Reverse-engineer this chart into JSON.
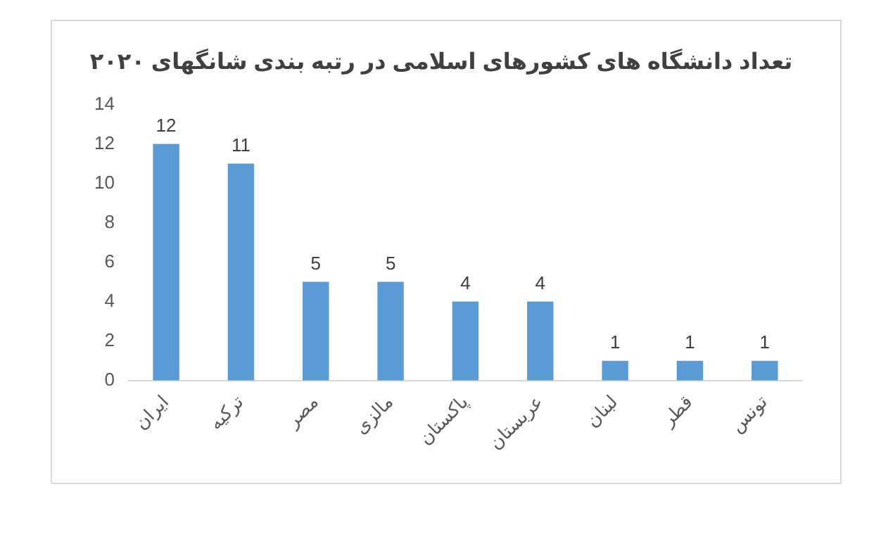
{
  "chart_data": {
    "type": "bar",
    "title": "تعداد دانشگاه های کشورهای اسلامی در رتبه بندی شانگهای ۲۰۲۰",
    "categories": [
      "ایران",
      "ترکیه",
      "مصر",
      "مالزی",
      "پاکستان",
      "عربستان",
      "لبنان",
      "قطر",
      "تونس"
    ],
    "values": [
      12,
      11,
      5,
      5,
      4,
      4,
      1,
      1,
      1
    ],
    "color": "#5b9bd5",
    "ylim": [
      0,
      14
    ],
    "yticks": [
      0,
      2,
      4,
      6,
      8,
      10,
      12,
      14
    ],
    "grid": false,
    "legend": false,
    "data_labels": true
  }
}
